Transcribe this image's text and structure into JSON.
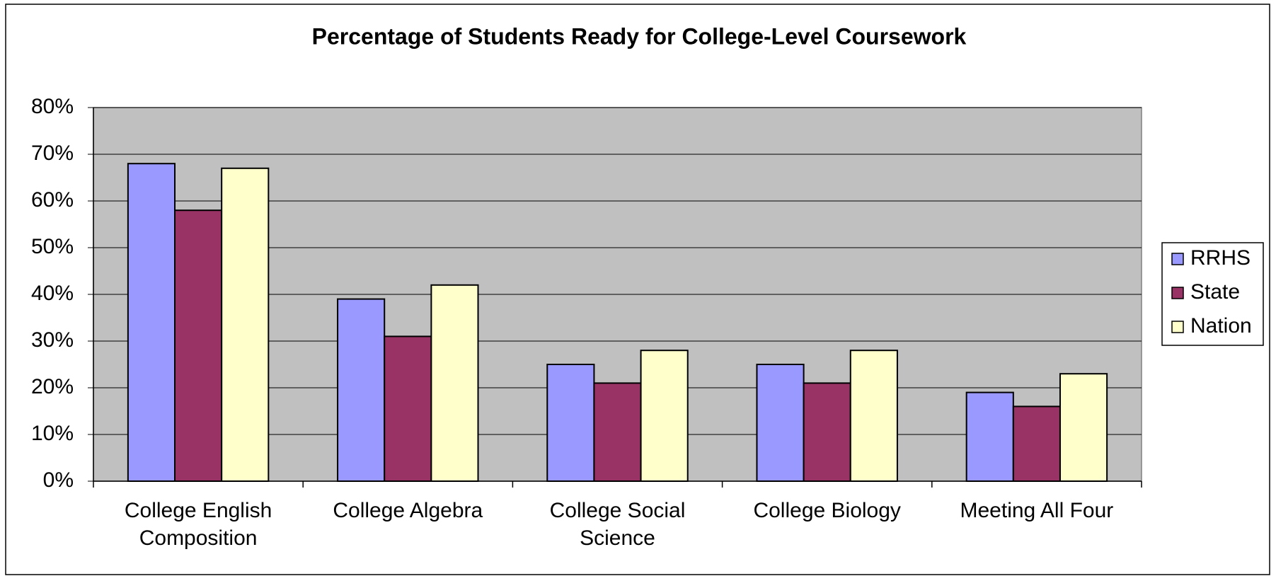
{
  "chart_data": {
    "type": "bar",
    "title": "Percentage of Students Ready for College-Level Coursework",
    "categories": [
      "College English Composition",
      "College Algebra",
      "College Social Science",
      "College Biology",
      "Meeting All Four"
    ],
    "series": [
      {
        "name": "RRHS",
        "color": "#9999ff",
        "values": [
          68,
          39,
          25,
          25,
          19
        ]
      },
      {
        "name": "State",
        "color": "#993366",
        "values": [
          58,
          31,
          21,
          21,
          16
        ]
      },
      {
        "name": "Nation",
        "color": "#ffffcc",
        "values": [
          67,
          42,
          28,
          28,
          23
        ]
      }
    ],
    "ylim": [
      0,
      80
    ],
    "yticks": [
      {
        "value": 0,
        "label": "0%"
      },
      {
        "value": 10,
        "label": "10%"
      },
      {
        "value": 20,
        "label": "20%"
      },
      {
        "value": 30,
        "label": "30%"
      },
      {
        "value": 40,
        "label": "40%"
      },
      {
        "value": 50,
        "label": "50%"
      },
      {
        "value": 60,
        "label": "60%"
      },
      {
        "value": 70,
        "label": "70%"
      },
      {
        "value": 80,
        "label": "80%"
      }
    ],
    "grid": true,
    "legend": "right"
  }
}
